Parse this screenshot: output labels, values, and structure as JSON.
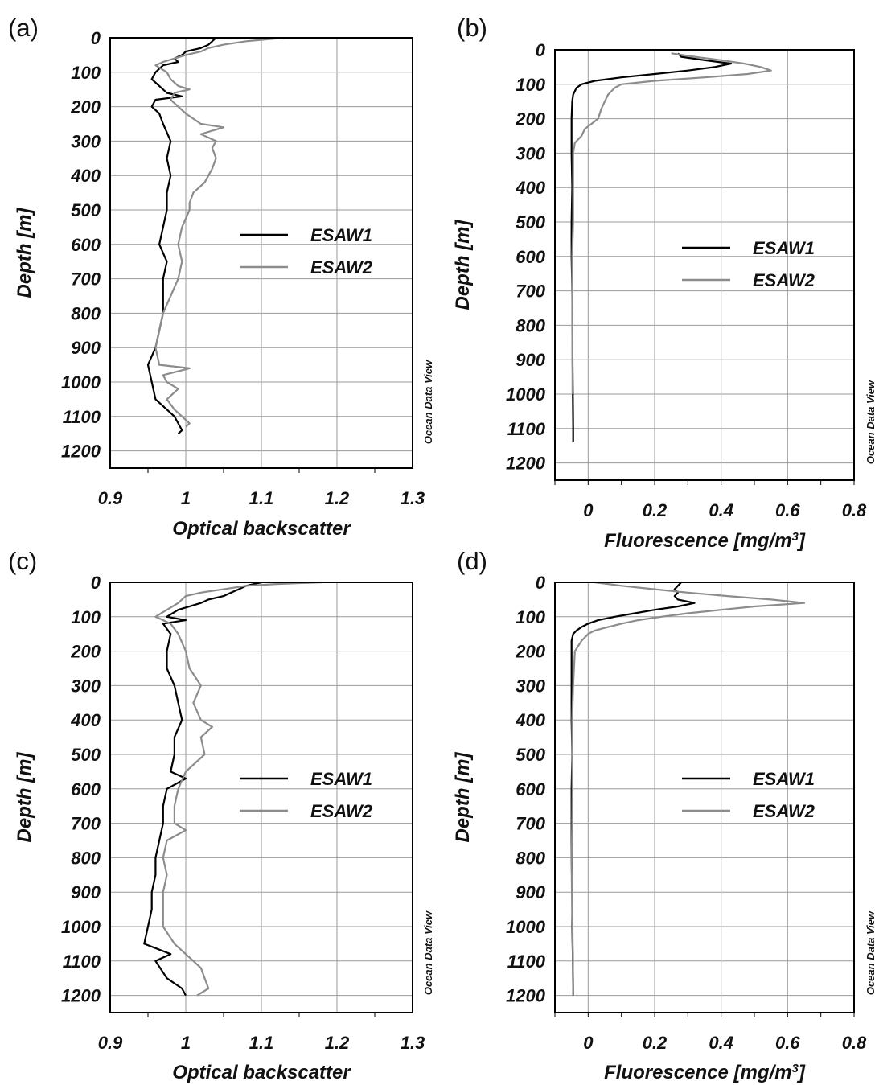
{
  "chart_data": [
    {
      "panel_label": "(a)",
      "type": "line",
      "xlabel": "Optical backscatter",
      "ylabel": "Depth [m]",
      "xlim": [
        0.9,
        1.3
      ],
      "ylim": [
        0,
        1250
      ],
      "y_inverted": true,
      "x_ticks": [
        "0.9",
        "1",
        "1.1",
        "1.2",
        "1.3"
      ],
      "y_ticks": [
        "0",
        "100",
        "200",
        "300",
        "400",
        "500",
        "600",
        "700",
        "800",
        "900",
        "1000",
        "1100",
        "1200"
      ],
      "grid": true,
      "legend_position": "center-right",
      "watermark": "Ocean Data View",
      "series": [
        {
          "name": "ESAW1",
          "color": "#000000",
          "depth": [
            0,
            10,
            20,
            30,
            40,
            50,
            60,
            70,
            80,
            90,
            100,
            120,
            140,
            160,
            170,
            180,
            200,
            220,
            250,
            300,
            350,
            400,
            450,
            500,
            550,
            600,
            650,
            700,
            750,
            800,
            850,
            900,
            950,
            1000,
            1050,
            1080,
            1100,
            1120,
            1140,
            1150
          ],
          "values": [
            1.04,
            1.035,
            1.03,
            1.02,
            1.0,
            0.995,
            0.985,
            0.99,
            0.97,
            0.965,
            0.96,
            0.955,
            0.965,
            0.975,
            0.995,
            0.96,
            0.955,
            0.965,
            0.97,
            0.98,
            0.975,
            0.98,
            0.975,
            0.975,
            0.97,
            0.965,
            0.975,
            0.97,
            0.97,
            0.97,
            0.965,
            0.96,
            0.95,
            0.955,
            0.96,
            0.975,
            0.985,
            0.99,
            0.995,
            0.99
          ]
        },
        {
          "name": "ESAW2",
          "color": "#8c8c8c",
          "depth": [
            0,
            10,
            20,
            30,
            40,
            50,
            60,
            70,
            80,
            100,
            120,
            140,
            150,
            160,
            180,
            200,
            220,
            250,
            260,
            280,
            300,
            320,
            350,
            380,
            400,
            420,
            450,
            480,
            500,
            550,
            600,
            650,
            700,
            750,
            800,
            850,
            900,
            950,
            960,
            980,
            1000,
            1020,
            1050,
            1080,
            1100,
            1120,
            1130
          ],
          "values": [
            1.13,
            1.08,
            1.05,
            1.03,
            1.02,
            1.0,
            0.985,
            0.97,
            0.96,
            0.975,
            0.98,
            0.99,
            1.005,
            0.985,
            0.98,
            0.99,
            1.0,
            1.02,
            1.05,
            1.02,
            1.04,
            1.035,
            1.04,
            1.035,
            1.03,
            1.025,
            1.01,
            1.005,
            1.005,
            0.995,
            0.99,
            0.995,
            0.99,
            0.98,
            0.97,
            0.965,
            0.96,
            0.965,
            1.005,
            0.97,
            0.975,
            0.99,
            0.975,
            0.985,
            0.995,
            1.005,
            1.0
          ]
        }
      ]
    },
    {
      "panel_label": "(b)",
      "type": "line",
      "xlabel": "Fluorescence [mg/m",
      "xlabel_sup": "3",
      "xlabel_end": "]",
      "ylabel": "Depth [m]",
      "xlim": [
        -0.1,
        0.8
      ],
      "ylim": [
        0,
        1250
      ],
      "y_inverted": true,
      "x_ticks": [
        "0",
        "0.2",
        "0.4",
        "0.6",
        "0.8"
      ],
      "y_ticks": [
        "0",
        "100",
        "200",
        "300",
        "400",
        "500",
        "600",
        "700",
        "800",
        "900",
        "1000",
        "1100",
        "1200"
      ],
      "grid": true,
      "legend_position": "center-right",
      "watermark": "Ocean Data View",
      "series": [
        {
          "name": "ESAW1",
          "color": "#000000",
          "depth": [
            10,
            20,
            30,
            40,
            50,
            60,
            70,
            80,
            90,
            100,
            110,
            120,
            130,
            150,
            200,
            250,
            300,
            400,
            500,
            600,
            700,
            800,
            900,
            1000,
            1100,
            1140
          ],
          "values": [
            0.27,
            0.28,
            0.35,
            0.43,
            0.38,
            0.3,
            0.2,
            0.1,
            0.02,
            -0.02,
            -0.035,
            -0.04,
            -0.045,
            -0.048,
            -0.05,
            -0.05,
            -0.05,
            -0.048,
            -0.05,
            -0.05,
            -0.048,
            -0.047,
            -0.047,
            -0.046,
            -0.045,
            -0.045
          ]
        },
        {
          "name": "ESAW2",
          "color": "#8c8c8c",
          "depth": [
            10,
            20,
            30,
            40,
            50,
            60,
            70,
            80,
            90,
            100,
            110,
            120,
            130,
            150,
            170,
            200,
            230,
            250,
            270,
            300,
            350,
            400,
            500,
            600,
            700,
            800,
            900,
            1000
          ],
          "values": [
            0.25,
            0.32,
            0.4,
            0.47,
            0.52,
            0.55,
            0.48,
            0.35,
            0.2,
            0.1,
            0.08,
            0.07,
            0.06,
            0.05,
            0.04,
            0.03,
            -0.01,
            -0.02,
            -0.04,
            -0.045,
            -0.045,
            -0.045,
            -0.045,
            -0.048,
            -0.048,
            -0.048,
            -0.047,
            -0.047
          ]
        }
      ]
    },
    {
      "panel_label": "(c)",
      "type": "line",
      "xlabel": "Optical backscatter",
      "ylabel": "Depth [m]",
      "xlim": [
        0.9,
        1.3
      ],
      "ylim": [
        0,
        1250
      ],
      "y_inverted": true,
      "x_ticks": [
        "0.9",
        "1",
        "1.1",
        "1.2",
        "1.3"
      ],
      "y_ticks": [
        "0",
        "100",
        "200",
        "300",
        "400",
        "500",
        "600",
        "700",
        "800",
        "900",
        "1000",
        "1100",
        "1200"
      ],
      "grid": true,
      "legend_position": "center-right",
      "watermark": "Ocean Data View",
      "series": [
        {
          "name": "ESAW1",
          "color": "#000000",
          "depth": [
            0,
            10,
            20,
            30,
            40,
            50,
            60,
            80,
            100,
            110,
            120,
            150,
            200,
            250,
            300,
            350,
            400,
            450,
            500,
            550,
            570,
            600,
            650,
            700,
            750,
            800,
            850,
            900,
            950,
            1000,
            1050,
            1080,
            1100,
            1150,
            1180,
            1200
          ],
          "values": [
            1.1,
            1.08,
            1.07,
            1.06,
            1.05,
            1.03,
            1.02,
            0.99,
            0.975,
            1.0,
            0.97,
            0.98,
            0.975,
            0.975,
            0.985,
            0.99,
            0.995,
            0.985,
            0.985,
            0.98,
            1.0,
            0.975,
            0.97,
            0.97,
            0.965,
            0.96,
            0.96,
            0.955,
            0.955,
            0.95,
            0.945,
            0.98,
            0.96,
            0.975,
            0.995,
            1.0
          ]
        },
        {
          "name": "ESAW2",
          "color": "#8c8c8c",
          "depth": [
            0,
            5,
            10,
            20,
            30,
            40,
            60,
            80,
            100,
            120,
            150,
            200,
            250,
            300,
            350,
            400,
            420,
            450,
            500,
            550,
            600,
            650,
            700,
            720,
            750,
            800,
            850,
            900,
            950,
            1000,
            1050,
            1100,
            1120,
            1150,
            1180,
            1200
          ],
          "values": [
            1.18,
            1.12,
            1.08,
            1.05,
            1.02,
            1.0,
            0.99,
            0.975,
            0.96,
            0.98,
            0.99,
            1.0,
            1.005,
            1.02,
            1.01,
            1.02,
            1.035,
            1.02,
            1.025,
            1.0,
            0.99,
            0.985,
            0.985,
            1.0,
            0.975,
            0.97,
            0.975,
            0.97,
            0.97,
            0.97,
            0.985,
            1.01,
            1.02,
            1.025,
            1.03,
            1.015
          ]
        }
      ]
    },
    {
      "panel_label": "(d)",
      "type": "line",
      "xlabel": "Fluorescence [mg/m",
      "xlabel_sup": "3",
      "xlabel_end": "]",
      "ylabel": "Depth [m]",
      "xlim": [
        -0.1,
        0.8
      ],
      "ylim": [
        0,
        1250
      ],
      "y_inverted": true,
      "x_ticks": [
        "0",
        "0.2",
        "0.4",
        "0.6",
        "0.8"
      ],
      "y_ticks": [
        "0",
        "100",
        "200",
        "300",
        "400",
        "500",
        "600",
        "700",
        "800",
        "900",
        "1000",
        "1100",
        "1200"
      ],
      "grid": true,
      "legend_position": "center-right",
      "watermark": "Ocean Data View",
      "series": [
        {
          "name": "ESAW1",
          "color": "#000000",
          "depth": [
            0,
            10,
            20,
            30,
            40,
            50,
            60,
            70,
            80,
            90,
            100,
            110,
            120,
            130,
            140,
            150,
            170,
            200,
            300,
            400,
            500,
            600,
            700,
            800,
            900,
            1000,
            1100,
            1200
          ],
          "values": [
            0.28,
            0.27,
            0.26,
            0.27,
            0.26,
            0.27,
            0.32,
            0.27,
            0.2,
            0.14,
            0.08,
            0.03,
            0.0,
            -0.02,
            -0.035,
            -0.045,
            -0.05,
            -0.05,
            -0.05,
            -0.05,
            -0.048,
            -0.05,
            -0.05,
            -0.05,
            -0.048,
            -0.048,
            -0.046,
            -0.045
          ]
        },
        {
          "name": "ESAW2",
          "color": "#8c8c8c",
          "depth": [
            0,
            10,
            20,
            30,
            40,
            50,
            60,
            70,
            80,
            90,
            100,
            110,
            120,
            130,
            140,
            150,
            170,
            200,
            300,
            400,
            500,
            600,
            700,
            800,
            900,
            1000,
            1100,
            1200
          ],
          "values": [
            0.02,
            0.1,
            0.2,
            0.3,
            0.42,
            0.55,
            0.65,
            0.5,
            0.4,
            0.3,
            0.22,
            0.15,
            0.1,
            0.06,
            0.02,
            0.0,
            -0.02,
            -0.04,
            -0.045,
            -0.048,
            -0.048,
            -0.047,
            -0.048,
            -0.05,
            -0.049,
            -0.047,
            -0.046,
            -0.045
          ]
        }
      ]
    }
  ]
}
